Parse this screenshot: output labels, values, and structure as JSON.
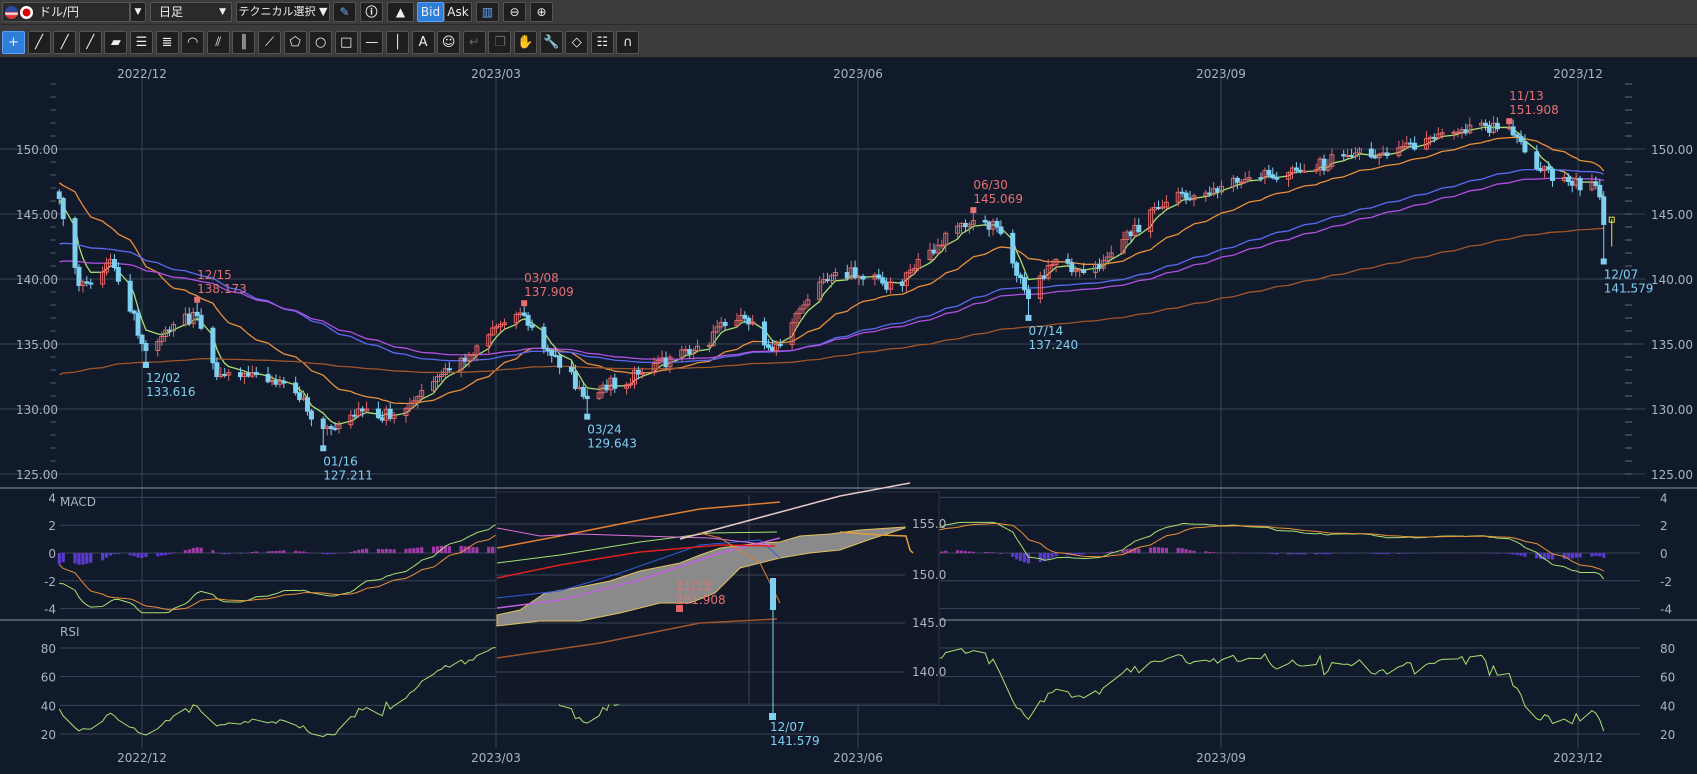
{
  "toolbar": {
    "symbol": "ドル/円",
    "timeframe": "日足",
    "technical": "テクニカル選択 ▼",
    "bid": "Bid",
    "ask": "Ask",
    "tools": [
      "crosshair",
      "line-1",
      "line-2",
      "line-3",
      "ruler",
      "parallel-lines",
      "multi-lines",
      "fibo-arc",
      "fibo-fan",
      "vertical-lines",
      "gann-fan",
      "pentagon",
      "circle",
      "rectangle",
      "horizontal-line",
      "vertical-line",
      "text",
      "icon-stamp",
      "undo",
      "copy",
      "hand",
      "wrench",
      "eraser",
      "settings-list",
      "magnet"
    ]
  },
  "chart_data": {
    "type": "candlestick",
    "symbol": "USD/JPY daily",
    "x_ticks": [
      "2022/12",
      "2023/03",
      "2023/06",
      "2023/09",
      "2023/12"
    ],
    "price_ticks": [
      "150.00",
      "145.00",
      "140.00",
      "135.00",
      "130.00",
      "125.00"
    ],
    "macd": {
      "label": "MACD",
      "ticks": [
        "4",
        "2",
        "0",
        "-2",
        "-4"
      ]
    },
    "rsi": {
      "label": "RSI",
      "ticks": [
        "80",
        "60",
        "40",
        "20"
      ]
    },
    "waypoints": [
      [
        "2022-11-10",
        146.2
      ],
      [
        "2022-11-15",
        139.5
      ],
      [
        "2022-11-23",
        141.5
      ],
      [
        "2022-12-02",
        134.5
      ],
      [
        "2022-12-09",
        136.5
      ],
      [
        "2022-12-15",
        137.2
      ],
      [
        "2022-12-20",
        132.5
      ],
      [
        "2022-12-29",
        132.8
      ],
      [
        "2023-01-06",
        132.0
      ],
      [
        "2023-01-16",
        128.5
      ],
      [
        "2023-01-27",
        130.0
      ],
      [
        "2023-02-03",
        129.5
      ],
      [
        "2023-02-14",
        132.5
      ],
      [
        "2023-03-02",
        136.5
      ],
      [
        "2023-03-08",
        137.2
      ],
      [
        "2023-03-14",
        134.5
      ],
      [
        "2023-03-24",
        130.8
      ],
      [
        "2023-04-10",
        133.5
      ],
      [
        "2023-04-20",
        134.5
      ],
      [
        "2023-05-02",
        137.2
      ],
      [
        "2023-05-10",
        134.5
      ],
      [
        "2023-05-18",
        138.0
      ],
      [
        "2023-05-26",
        140.5
      ],
      [
        "2023-06-02",
        140.0
      ],
      [
        "2023-06-12",
        139.5
      ],
      [
        "2023-06-16",
        141.5
      ],
      [
        "2023-06-30",
        144.5
      ],
      [
        "2023-07-06",
        144.0
      ],
      [
        "2023-07-14",
        138.5
      ],
      [
        "2023-07-21",
        141.5
      ],
      [
        "2023-07-28",
        140.5
      ],
      [
        "2023-08-04",
        142.0
      ],
      [
        "2023-08-15",
        145.5
      ],
      [
        "2023-08-25",
        146.4
      ],
      [
        "2023-09-08",
        147.8
      ],
      [
        "2023-09-22",
        148.3
      ],
      [
        "2023-10-03",
        149.5
      ],
      [
        "2023-10-13",
        149.5
      ],
      [
        "2023-10-31",
        151.3
      ],
      [
        "2023-11-13",
        151.7
      ],
      [
        "2023-11-20",
        148.5
      ],
      [
        "2023-11-28",
        147.5
      ],
      [
        "2023-12-05",
        147.2
      ],
      [
        "2023-12-07",
        144.2
      ]
    ],
    "moving_averages": [
      {
        "period": 5,
        "color": "#a8e070",
        "seed": 146
      },
      {
        "period": 25,
        "color": "#e8903a",
        "seed": 147.5
      },
      {
        "period": 75,
        "color": "#5a6af0",
        "seed": 142.6
      },
      {
        "period": 90,
        "color": "#b050e0",
        "seed": 141.2
      },
      {
        "period": 200,
        "color": "#a0562a",
        "seed": 132.5
      }
    ],
    "markers": [
      {
        "date": "12/15",
        "value": "138.173",
        "iso": "2022-12-15",
        "type": "high"
      },
      {
        "date": "12/02",
        "value": "133.616",
        "iso": "2022-12-02",
        "type": "low"
      },
      {
        "date": "01/16",
        "value": "127.211",
        "iso": "2023-01-16",
        "type": "low"
      },
      {
        "date": "03/08",
        "value": "137.909",
        "iso": "2023-03-08",
        "type": "high"
      },
      {
        "date": "03/24",
        "value": "129.643",
        "iso": "2023-03-24",
        "type": "low"
      },
      {
        "date": "06/30",
        "value": "145.069",
        "iso": "2023-06-30",
        "type": "high"
      },
      {
        "date": "07/14",
        "value": "137.240",
        "iso": "2023-07-14",
        "type": "low"
      },
      {
        "date": "11/13",
        "value": "151.908",
        "iso": "2023-11-13",
        "type": "high"
      },
      {
        "date": "12/07",
        "value": "141.579",
        "iso": "2023-12-07",
        "type": "low"
      }
    ],
    "inset": {
      "ticks": [
        "155.0",
        "150.0",
        "145.0",
        "140.0"
      ],
      "high_date": "11/13",
      "high_value": "151.908",
      "low_date": "12/07",
      "low_value": "141.579"
    },
    "colors": {
      "up": "#e06666",
      "down": "#7fd0f0",
      "bg": "#111a2b"
    }
  }
}
